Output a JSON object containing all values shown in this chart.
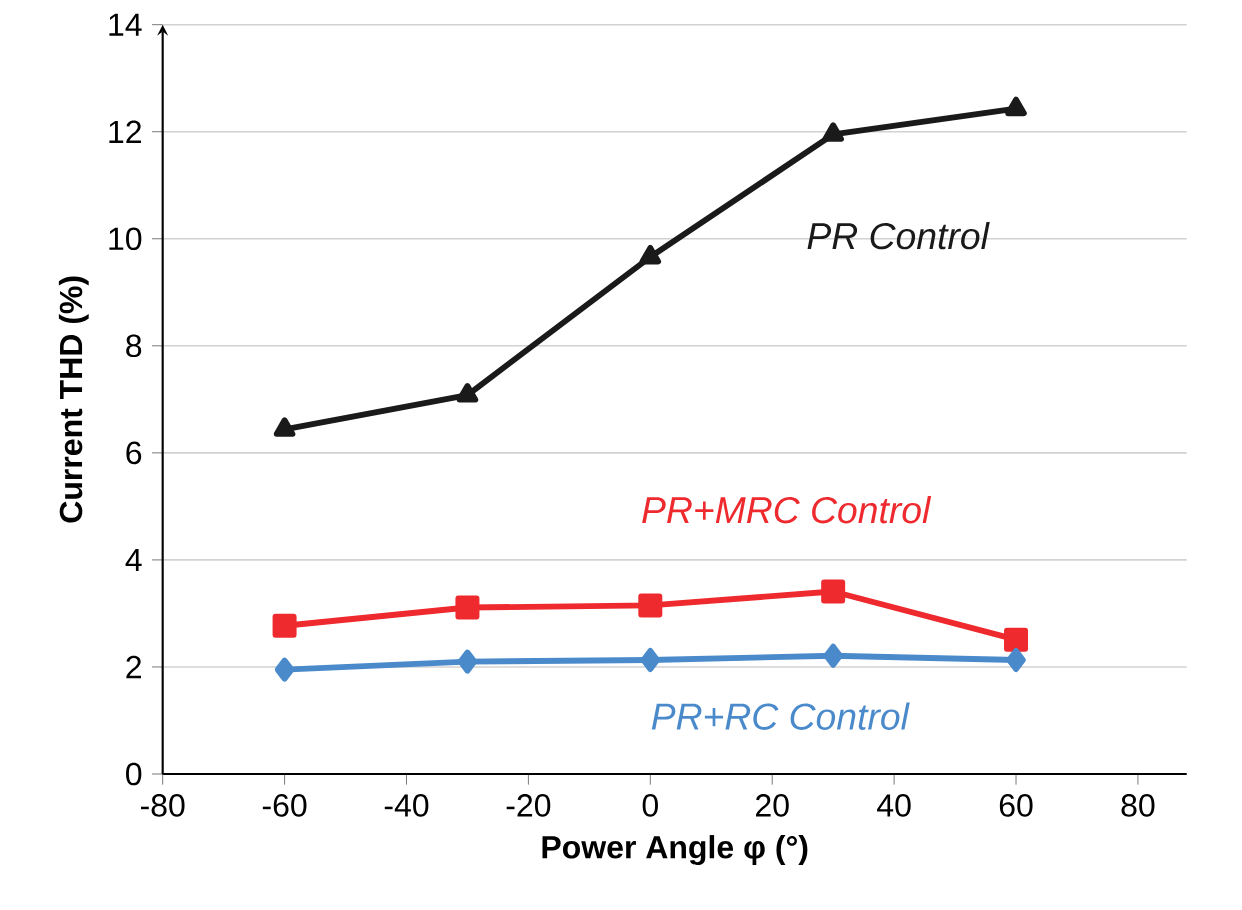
{
  "chart_data": {
    "type": "line",
    "xlabel": "Power Angle φ (°)",
    "ylabel": "Current THD (%)",
    "x": [
      -60,
      -30,
      0,
      30,
      60
    ],
    "series": [
      {
        "name": "PR Control",
        "color": "#1a1a1a",
        "marker": "triangle",
        "values": [
          6.44,
          7.08,
          9.66,
          11.95,
          12.43
        ]
      },
      {
        "name": "PR+MRC Control",
        "color": "#ee2a2f",
        "marker": "square",
        "values": [
          2.77,
          3.11,
          3.15,
          3.41,
          2.51
        ]
      },
      {
        "name": "PR+RC Control",
        "color": "#4a8acb",
        "marker": "diamond",
        "values": [
          1.95,
          2.1,
          2.13,
          2.21,
          2.13
        ]
      }
    ],
    "xlim": [
      -80,
      88
    ],
    "ylim": [
      0,
      14
    ],
    "xticks": [
      -80,
      -60,
      -40,
      -20,
      0,
      20,
      40,
      60,
      80
    ],
    "yticks": [
      0,
      2,
      4,
      6,
      8,
      10,
      12,
      14
    ],
    "grid": "y",
    "legend": false,
    "line_style": "solid"
  }
}
